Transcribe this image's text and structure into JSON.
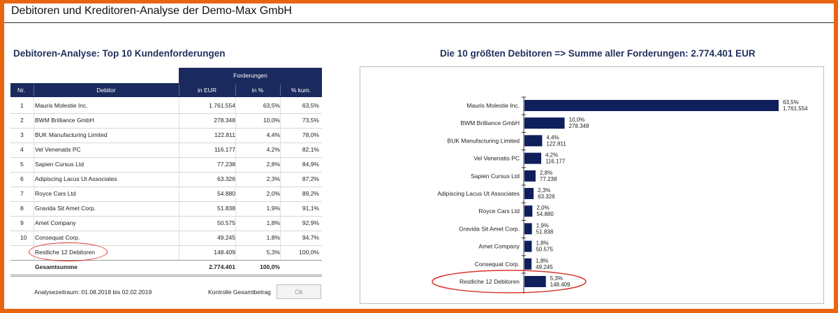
{
  "window_title": "Debitoren und Kreditoren-Analyse der Demo-Max GmbH",
  "table_section_title": "Debitoren-Analyse: Top 10 Kundenforderungen",
  "chart_section_title": "Die 10 größten Debitoren => Summe aller Forderungen: 2.774.401 EUR",
  "table": {
    "group_header": "Forderungen",
    "headers": {
      "nr": "Nr.",
      "debitor": "Debitor",
      "eur": "in EUR",
      "pct": "in %",
      "kum": "% kum."
    },
    "rows": [
      {
        "nr": "1",
        "debitor": "Mauris Molestie Inc.",
        "eur": "1.761.554",
        "pct": "63,5%",
        "kum": "63,5%"
      },
      {
        "nr": "2",
        "debitor": "BWM Brilliance GmbH",
        "eur": "278.348",
        "pct": "10,0%",
        "kum": "73,5%"
      },
      {
        "nr": "3",
        "debitor": "BUK Manufacturing Limited",
        "eur": "122.811",
        "pct": "4,4%",
        "kum": "78,0%"
      },
      {
        "nr": "4",
        "debitor": "Vel Venenatis PC",
        "eur": "116.177",
        "pct": "4,2%",
        "kum": "82,1%"
      },
      {
        "nr": "5",
        "debitor": "Sapien Cursus Ltd",
        "eur": "77.238",
        "pct": "2,8%",
        "kum": "84,9%"
      },
      {
        "nr": "6",
        "debitor": "Adipiscing Lacus Ut Associates",
        "eur": "63.326",
        "pct": "2,3%",
        "kum": "87,2%"
      },
      {
        "nr": "7",
        "debitor": "Royce Cars Ltd",
        "eur": "54.880",
        "pct": "2,0%",
        "kum": "89,2%"
      },
      {
        "nr": "8",
        "debitor": "Gravida Sit Amet Corp.",
        "eur": "51.838",
        "pct": "1,9%",
        "kum": "91,1%"
      },
      {
        "nr": "9",
        "debitor": "Amet Company",
        "eur": "50.575",
        "pct": "1,8%",
        "kum": "92,9%"
      },
      {
        "nr": "10",
        "debitor": "Consequat Corp.",
        "eur": "49.245",
        "pct": "1,8%",
        "kum": "94,7%"
      }
    ],
    "rest": {
      "debitor": "Restliche 12 Debitoren",
      "eur": "148.409",
      "pct": "5,3%",
      "kum": "100,0%"
    },
    "total": {
      "label": "Gesamtsumme",
      "eur": "2.774.401",
      "pct": "100,0%"
    }
  },
  "footer": {
    "period": "Analysezeitraum: 01.08.2018 bis 02.02.2019",
    "check_label": "Kontrolle Gesamtbetrag",
    "ok_button": "Ok"
  },
  "colors": {
    "bar": "#0f1f5c",
    "header": "#1b2a5e",
    "highlight": "#d9342b",
    "frame": "#e8650f"
  },
  "chart_data": {
    "type": "bar",
    "orientation": "horizontal",
    "title": "Die 10 größten Debitoren => Summe aller Forderungen: 2.774.401 EUR",
    "categories": [
      "Mauris Molestie Inc.",
      "BWM Brilliance GmbH",
      "BUK Manufacturing Limited",
      "Vel Venenatis PC",
      "Sapien Cursus Ltd",
      "Adipiscing Lacus Ut Associates",
      "Royce Cars Ltd",
      "Gravida Sit Amet Corp.",
      "Amet Company",
      "Consequat Corp.",
      "Restliche 12 Debitoren"
    ],
    "values": [
      1761554,
      278348,
      122811,
      116177,
      77238,
      63326,
      54880,
      51838,
      50575,
      49245,
      148409
    ],
    "percent_labels": [
      "63,5%",
      "10,0%",
      "4,4%",
      "4,2%",
      "2,8%",
      "2,3%",
      "2,0%",
      "1,9%",
      "1,8%",
      "1,8%",
      "5,3%"
    ],
    "value_labels": [
      "1.761.554",
      "278.348",
      "122.811",
      "116.177",
      "77.238",
      "63.326",
      "54.880",
      "51.838",
      "50.575",
      "49.245",
      "148.409"
    ],
    "xlabel": "",
    "ylabel": "",
    "xlim": [
      0,
      1761554
    ],
    "grid": false,
    "legend": "none"
  }
}
